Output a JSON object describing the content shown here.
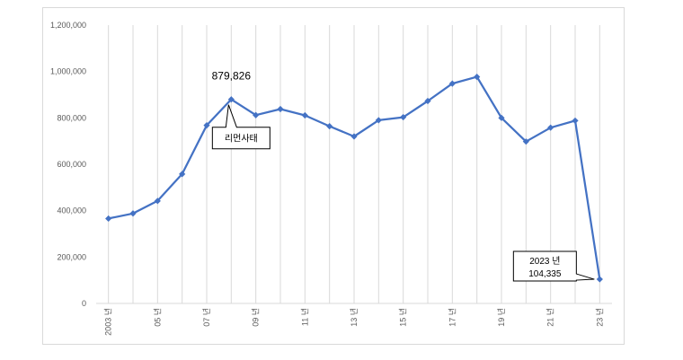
{
  "chart_data": {
    "type": "line",
    "title": "",
    "xlabel": "",
    "ylabel": "",
    "ylim": [
      0,
      1200000
    ],
    "y_ticks": [
      "0",
      "200,000",
      "400,000",
      "600,000",
      "800,000",
      "1,000,000",
      "1,200,000"
    ],
    "categories": [
      "2003",
      "2004",
      "2005",
      "2006",
      "2007",
      "2008",
      "2009",
      "2010",
      "2011",
      "2012",
      "2013",
      "2014",
      "2015",
      "2016",
      "2017",
      "2018",
      "2019",
      "2020",
      "2021",
      "2022",
      "2023"
    ],
    "x_tick_labels": [
      "2003 년",
      "",
      "05 년",
      "",
      "07 년",
      "",
      "09 년",
      "",
      "11 년",
      "",
      "13 년",
      "",
      "15 년",
      "",
      "17 년",
      "",
      "19 년",
      "",
      "21 년",
      "",
      "23 년"
    ],
    "series": [
      {
        "values": [
          366000,
          388000,
          442000,
          558000,
          768000,
          879826,
          812000,
          838000,
          811000,
          764000,
          720000,
          790000,
          803000,
          873000,
          948000,
          977000,
          800000,
          698000,
          758000,
          788000,
          104335
        ]
      }
    ],
    "colors": {
      "line": "#4472c4",
      "grid": "#d9d9d9",
      "text": "#595959"
    },
    "grid": "vertical",
    "annotations": [
      {
        "category": "2008",
        "text": "879,826"
      },
      {
        "category": "2008",
        "text": "리먼사태",
        "style": "callout"
      },
      {
        "category": "2023",
        "lines": [
          "2023 년",
          "104,335"
        ],
        "style": "callout"
      }
    ]
  }
}
